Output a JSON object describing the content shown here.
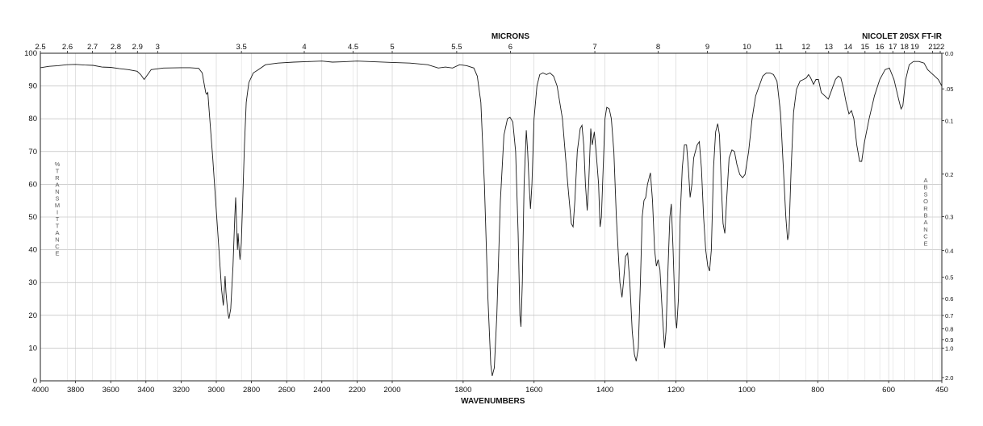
{
  "chart_data": {
    "type": "line",
    "title": "NICOLET 20SX FT-IR",
    "top_axis_title": "MICRONS",
    "bottom_axis_title": "WAVENUMBERS",
    "left_axis_title": "%TRANSMITTANCE",
    "right_axis_title": "ABSORBANCE",
    "xlim": [
      4000,
      450
    ],
    "ylim": [
      0,
      100
    ],
    "grid": true,
    "x_ticks": [
      4000,
      3800,
      3600,
      3400,
      3200,
      3000,
      2800,
      2600,
      2400,
      2200,
      2000,
      1800,
      1600,
      1400,
      1200,
      1000,
      800,
      600,
      450
    ],
    "x_tick_labels": [
      "4000",
      "3800",
      "3600",
      "3400",
      "3200",
      "3000",
      "2800",
      "2600",
      "2400",
      "2200",
      "2000",
      "1800",
      "1600",
      "1400",
      "1200",
      "1000",
      "800",
      "600",
      "450"
    ],
    "y_ticks": [
      0,
      10,
      20,
      30,
      40,
      50,
      60,
      70,
      80,
      90,
      100
    ],
    "y_tick_labels": [
      "0",
      "10",
      "20",
      "30",
      "40",
      "50",
      "60",
      "70",
      "80",
      "90",
      "100"
    ],
    "micron_ticks": [
      2.5,
      2.6,
      2.7,
      2.8,
      2.9,
      3,
      3.5,
      4,
      4.5,
      5,
      5.5,
      6,
      7,
      8,
      9,
      10,
      11,
      12,
      13,
      14,
      15,
      16,
      17,
      18,
      19,
      21,
      22
    ],
    "micron_tick_labels": [
      "2.5",
      "2.6",
      "2.7",
      "2.8",
      "2.9",
      "3",
      "3.5",
      "4",
      "4.5",
      "5",
      "5.5",
      "6",
      "7",
      "8",
      "9",
      "10",
      "11",
      "12",
      "13",
      "14",
      "15",
      "16",
      "17",
      "18",
      "19",
      "21",
      "22"
    ],
    "absorbance_ticks": [
      "0.0",
      ".05",
      "0.1",
      "0.2",
      "0.3",
      "0.4",
      "0.5",
      "0.6",
      "0.7",
      "0.8",
      "0.9",
      "1.0",
      "2.0"
    ],
    "series": [
      {
        "points": [
          [
            4000,
            95.6
          ],
          [
            3950,
            96.0
          ],
          [
            3900,
            96.2
          ],
          [
            3850,
            96.5
          ],
          [
            3800,
            96.6
          ],
          [
            3750,
            96.4
          ],
          [
            3700,
            96.3
          ],
          [
            3650,
            95.8
          ],
          [
            3600,
            95.7
          ],
          [
            3550,
            95.3
          ],
          [
            3500,
            95.0
          ],
          [
            3450,
            94.5
          ],
          [
            3430,
            93.5
          ],
          [
            3410,
            92.0
          ],
          [
            3390,
            93.5
          ],
          [
            3370,
            95.0
          ],
          [
            3300,
            95.5
          ],
          [
            3200,
            95.6
          ],
          [
            3150,
            95.6
          ],
          [
            3100,
            95.4
          ],
          [
            3080,
            94.0
          ],
          [
            3070,
            91.0
          ],
          [
            3060,
            88.0
          ],
          [
            3055,
            87.5
          ],
          [
            3048,
            88.0
          ],
          [
            3040,
            82.0
          ],
          [
            3020,
            68.0
          ],
          [
            3000,
            52.0
          ],
          [
            2985,
            40.0
          ],
          [
            2970,
            28.0
          ],
          [
            2960,
            23.0
          ],
          [
            2955,
            27.0
          ],
          [
            2950,
            32.0
          ],
          [
            2945,
            27.0
          ],
          [
            2935,
            21.0
          ],
          [
            2928,
            19.0
          ],
          [
            2918,
            22.0
          ],
          [
            2905,
            35.0
          ],
          [
            2895,
            50.0
          ],
          [
            2890,
            56.0
          ],
          [
            2885,
            48.0
          ],
          [
            2880,
            40.0
          ],
          [
            2876,
            45.0
          ],
          [
            2870,
            40.0
          ],
          [
            2865,
            37.0
          ],
          [
            2858,
            42.0
          ],
          [
            2850,
            55.0
          ],
          [
            2840,
            72.0
          ],
          [
            2830,
            85.0
          ],
          [
            2815,
            91.0
          ],
          [
            2790,
            94.0
          ],
          [
            2760,
            95.0
          ],
          [
            2720,
            96.5
          ],
          [
            2650,
            97.0
          ],
          [
            2560,
            97.3
          ],
          [
            2460,
            97.5
          ],
          [
            2400,
            97.6
          ],
          [
            2340,
            97.3
          ],
          [
            2280,
            97.4
          ],
          [
            2200,
            97.6
          ],
          [
            2100,
            97.4
          ],
          [
            2000,
            97.2
          ],
          [
            1950,
            97.0
          ],
          [
            1900,
            96.5
          ],
          [
            1870,
            95.5
          ],
          [
            1850,
            95.8
          ],
          [
            1830,
            95.5
          ],
          [
            1810,
            96.5
          ],
          [
            1790,
            96.2
          ],
          [
            1770,
            95.5
          ],
          [
            1760,
            93.0
          ],
          [
            1750,
            85.0
          ],
          [
            1740,
            60.0
          ],
          [
            1730,
            25.0
          ],
          [
            1722,
            5.0
          ],
          [
            1718,
            1.5
          ],
          [
            1712,
            4.0
          ],
          [
            1705,
            20.0
          ],
          [
            1695,
            55.0
          ],
          [
            1685,
            75.0
          ],
          [
            1675,
            80.0
          ],
          [
            1668,
            80.5
          ],
          [
            1660,
            79.0
          ],
          [
            1652,
            70.0
          ],
          [
            1645,
            45.0
          ],
          [
            1640,
            20.0
          ],
          [
            1637,
            16.5
          ],
          [
            1633,
            30.0
          ],
          [
            1628,
            60.0
          ],
          [
            1622,
            76.5
          ],
          [
            1618,
            70.0
          ],
          [
            1614,
            60.0
          ],
          [
            1610,
            52.5
          ],
          [
            1606,
            60.0
          ],
          [
            1600,
            80.0
          ],
          [
            1592,
            90.0
          ],
          [
            1584,
            93.5
          ],
          [
            1575,
            94.0
          ],
          [
            1565,
            93.5
          ],
          [
            1555,
            94.0
          ],
          [
            1545,
            93.0
          ],
          [
            1535,
            90.0
          ],
          [
            1520,
            80.0
          ],
          [
            1505,
            60.0
          ],
          [
            1495,
            48.0
          ],
          [
            1490,
            47.0
          ],
          [
            1485,
            55.0
          ],
          [
            1478,
            70.0
          ],
          [
            1470,
            77.0
          ],
          [
            1465,
            78.0
          ],
          [
            1460,
            72.0
          ],
          [
            1455,
            60.0
          ],
          [
            1450,
            52.0
          ],
          [
            1446,
            60.0
          ],
          [
            1440,
            77.0
          ],
          [
            1436,
            72.0
          ],
          [
            1430,
            76.0
          ],
          [
            1425,
            70.0
          ],
          [
            1418,
            60.0
          ],
          [
            1414,
            47.0
          ],
          [
            1410,
            50.0
          ],
          [
            1405,
            65.0
          ],
          [
            1400,
            80.0
          ],
          [
            1395,
            83.5
          ],
          [
            1388,
            83.0
          ],
          [
            1382,
            80.0
          ],
          [
            1375,
            70.0
          ],
          [
            1368,
            50.0
          ],
          [
            1362,
            38.0
          ],
          [
            1358,
            30.0
          ],
          [
            1352,
            25.5
          ],
          [
            1348,
            30.0
          ],
          [
            1342,
            38.0
          ],
          [
            1336,
            39.0
          ],
          [
            1330,
            30.0
          ],
          [
            1323,
            15.0
          ],
          [
            1317,
            8.0
          ],
          [
            1312,
            6.0
          ],
          [
            1306,
            10.0
          ],
          [
            1300,
            30.0
          ],
          [
            1295,
            50.0
          ],
          [
            1290,
            55.0
          ],
          [
            1285,
            56.0
          ],
          [
            1280,
            60.0
          ],
          [
            1272,
            63.5
          ],
          [
            1266,
            55.0
          ],
          [
            1260,
            40.0
          ],
          [
            1255,
            35.0
          ],
          [
            1250,
            37.0
          ],
          [
            1245,
            34.0
          ],
          [
            1238,
            20.0
          ],
          [
            1232,
            10.0
          ],
          [
            1228,
            15.0
          ],
          [
            1222,
            35.0
          ],
          [
            1217,
            50.0
          ],
          [
            1213,
            54.0
          ],
          [
            1208,
            40.0
          ],
          [
            1202,
            20.0
          ],
          [
            1198,
            16.0
          ],
          [
            1193,
            25.0
          ],
          [
            1188,
            50.0
          ],
          [
            1182,
            65.0
          ],
          [
            1176,
            72.0
          ],
          [
            1170,
            72.0
          ],
          [
            1165,
            65.0
          ],
          [
            1160,
            56.0
          ],
          [
            1155,
            60.0
          ],
          [
            1150,
            68.0
          ],
          [
            1145,
            70.0
          ],
          [
            1140,
            72.0
          ],
          [
            1134,
            73.0
          ],
          [
            1128,
            65.0
          ],
          [
            1122,
            50.0
          ],
          [
            1116,
            40.0
          ],
          [
            1110,
            35.0
          ],
          [
            1105,
            33.5
          ],
          [
            1100,
            40.0
          ],
          [
            1094,
            65.0
          ],
          [
            1088,
            76.0
          ],
          [
            1082,
            78.5
          ],
          [
            1077,
            75.0
          ],
          [
            1072,
            60.0
          ],
          [
            1067,
            48.0
          ],
          [
            1062,
            45.0
          ],
          [
            1057,
            55.0
          ],
          [
            1050,
            68.0
          ],
          [
            1042,
            70.5
          ],
          [
            1035,
            70.0
          ],
          [
            1028,
            66.0
          ],
          [
            1020,
            63.0
          ],
          [
            1012,
            62.0
          ],
          [
            1005,
            63.0
          ],
          [
            995,
            70.0
          ],
          [
            985,
            80.0
          ],
          [
            975,
            87.0
          ],
          [
            965,
            90.0
          ],
          [
            955,
            93.0
          ],
          [
            945,
            94.0
          ],
          [
            935,
            94.0
          ],
          [
            925,
            93.5
          ],
          [
            915,
            91.5
          ],
          [
            905,
            82.0
          ],
          [
            897,
            65.0
          ],
          [
            890,
            50.0
          ],
          [
            885,
            43.0
          ],
          [
            881,
            45.0
          ],
          [
            875,
            65.0
          ],
          [
            868,
            82.0
          ],
          [
            860,
            89.0
          ],
          [
            850,
            91.5
          ],
          [
            840,
            92.0
          ],
          [
            832,
            92.5
          ],
          [
            826,
            93.5
          ],
          [
            820,
            92.5
          ],
          [
            812,
            90.5
          ],
          [
            805,
            92.0
          ],
          [
            798,
            92.0
          ],
          [
            790,
            88.0
          ],
          [
            780,
            87.0
          ],
          [
            770,
            86.0
          ],
          [
            760,
            89.0
          ],
          [
            750,
            92.0
          ],
          [
            742,
            93.0
          ],
          [
            735,
            92.5
          ],
          [
            728,
            89.5
          ],
          [
            720,
            85.0
          ],
          [
            712,
            81.5
          ],
          [
            705,
            82.5
          ],
          [
            698,
            80.0
          ],
          [
            690,
            72.0
          ],
          [
            682,
            67.0
          ],
          [
            676,
            67.0
          ],
          [
            668,
            73.0
          ],
          [
            655,
            80.0
          ],
          [
            640,
            87.0
          ],
          [
            625,
            92.0
          ],
          [
            610,
            95.0
          ],
          [
            598,
            95.5
          ],
          [
            585,
            92.0
          ],
          [
            572,
            86.0
          ],
          [
            565,
            83.0
          ],
          [
            560,
            84.0
          ],
          [
            552,
            92.0
          ],
          [
            542,
            96.5
          ],
          [
            530,
            97.5
          ],
          [
            515,
            97.5
          ],
          [
            500,
            97.0
          ],
          [
            490,
            95.0
          ],
          [
            480,
            94.0
          ],
          [
            470,
            93.0
          ],
          [
            460,
            92.0
          ],
          [
            450,
            90.0
          ]
        ]
      }
    ]
  }
}
